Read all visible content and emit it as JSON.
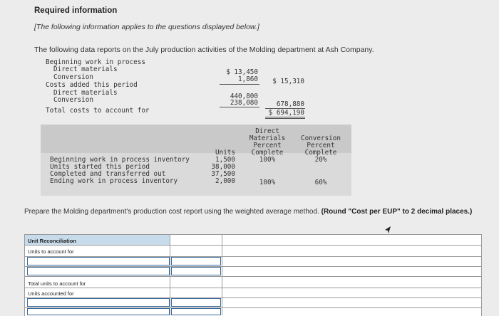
{
  "header": {
    "title": "Required information",
    "note": "[The following information applies to the questions displayed below.]",
    "intro": "The following data reports on the July production activities of the Molding department at Ash Company."
  },
  "costs": {
    "beginning_label": "Beginning work in process",
    "bwip_dm_label": "Direct materials",
    "bwip_dm_value": "$ 13,450",
    "bwip_conv_label": "Conversion",
    "bwip_conv_value": "1,860",
    "bwip_total": "$ 15,310",
    "added_label": "Costs added this period",
    "added_dm_label": "Direct materials",
    "added_dm_value": "440,800",
    "added_conv_label": "Conversion",
    "added_conv_value": "238,080",
    "added_total": "678,880",
    "total_label": "Total costs to account for",
    "total_value": "$ 694,190"
  },
  "units_table": {
    "headers": {
      "units": "Units",
      "dm_line1": "Direct",
      "dm_line2": "Materials",
      "dm_line3": "Percent",
      "dm_line4": "Complete",
      "conv_line1": "Conversion",
      "conv_line2": "Percent",
      "conv_line3": "Complete"
    },
    "rows": [
      {
        "label": "Beginning work in process inventory",
        "units": "1,500",
        "dm": "100%",
        "conv": "20%"
      },
      {
        "label": "Units started this period",
        "units": "38,000",
        "dm": "",
        "conv": ""
      },
      {
        "label": "Completed and transferred out",
        "units": "37,500",
        "dm": "",
        "conv": ""
      },
      {
        "label": "Ending work in process inventory",
        "units": "2,000",
        "dm": "100%",
        "conv": "60%"
      }
    ]
  },
  "instruction": {
    "text": "Prepare the Molding department's production cost report using the weighted average method.",
    "bold": "(Round \"Cost per EUP\" to 2 decimal places.)"
  },
  "answer_table": {
    "header": "Unit Reconciliation",
    "units_to_account": "Units to account for",
    "total_units_to_account": "Total units to account for",
    "units_accounted": "Units accounted for"
  }
}
